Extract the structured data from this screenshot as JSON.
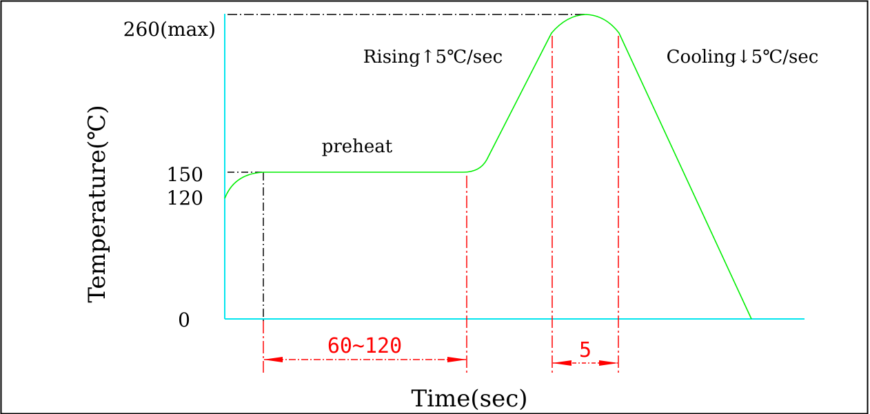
{
  "title": "",
  "axes": {
    "x_label": "Time(sec)",
    "y_label": "Temperature(℃)",
    "y_ticks": [
      "260(max)",
      "150",
      "120",
      "0"
    ]
  },
  "annotations": {
    "preheat": "preheat",
    "rising": "Rising↑5℃/sec",
    "cooling": "Cooling↓5℃/sec",
    "preheat_duration": "60~120",
    "peak_duration": "5"
  },
  "colors": {
    "profile": "#00ee00",
    "axes": "#00e5ee",
    "dimension": "#ff0000",
    "leader": "#000000",
    "frame": "#000000"
  }
}
